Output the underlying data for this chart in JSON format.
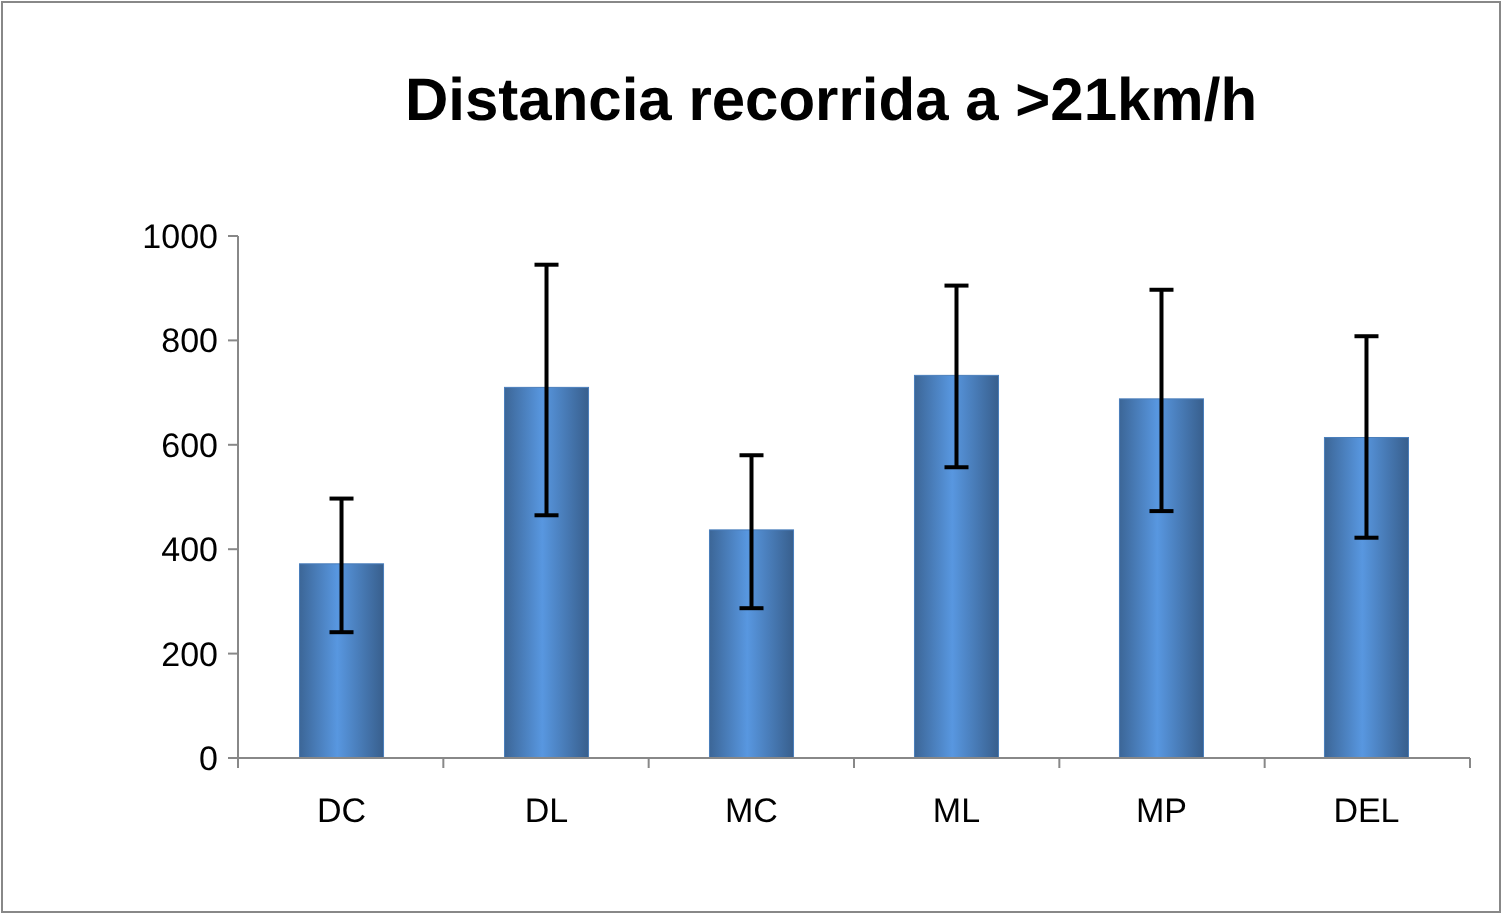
{
  "chart_data": {
    "type": "bar",
    "title": "Distancia recorrida a >21km/h",
    "categories": [
      "DC",
      "DL",
      "MC",
      "ML",
      "MP",
      "DEL"
    ],
    "values": [
      372,
      710,
      437,
      733,
      688,
      614
    ],
    "errors": [
      [
        241,
        497
      ],
      [
        465,
        945
      ],
      [
        287,
        580
      ],
      [
        557,
        905
      ],
      [
        473,
        897
      ],
      [
        422,
        808
      ]
    ],
    "color": "#4a7ebb",
    "ylim": [
      0,
      1000
    ],
    "yticks": [
      0,
      200,
      400,
      600,
      800,
      1000
    ],
    "grid": false
  }
}
